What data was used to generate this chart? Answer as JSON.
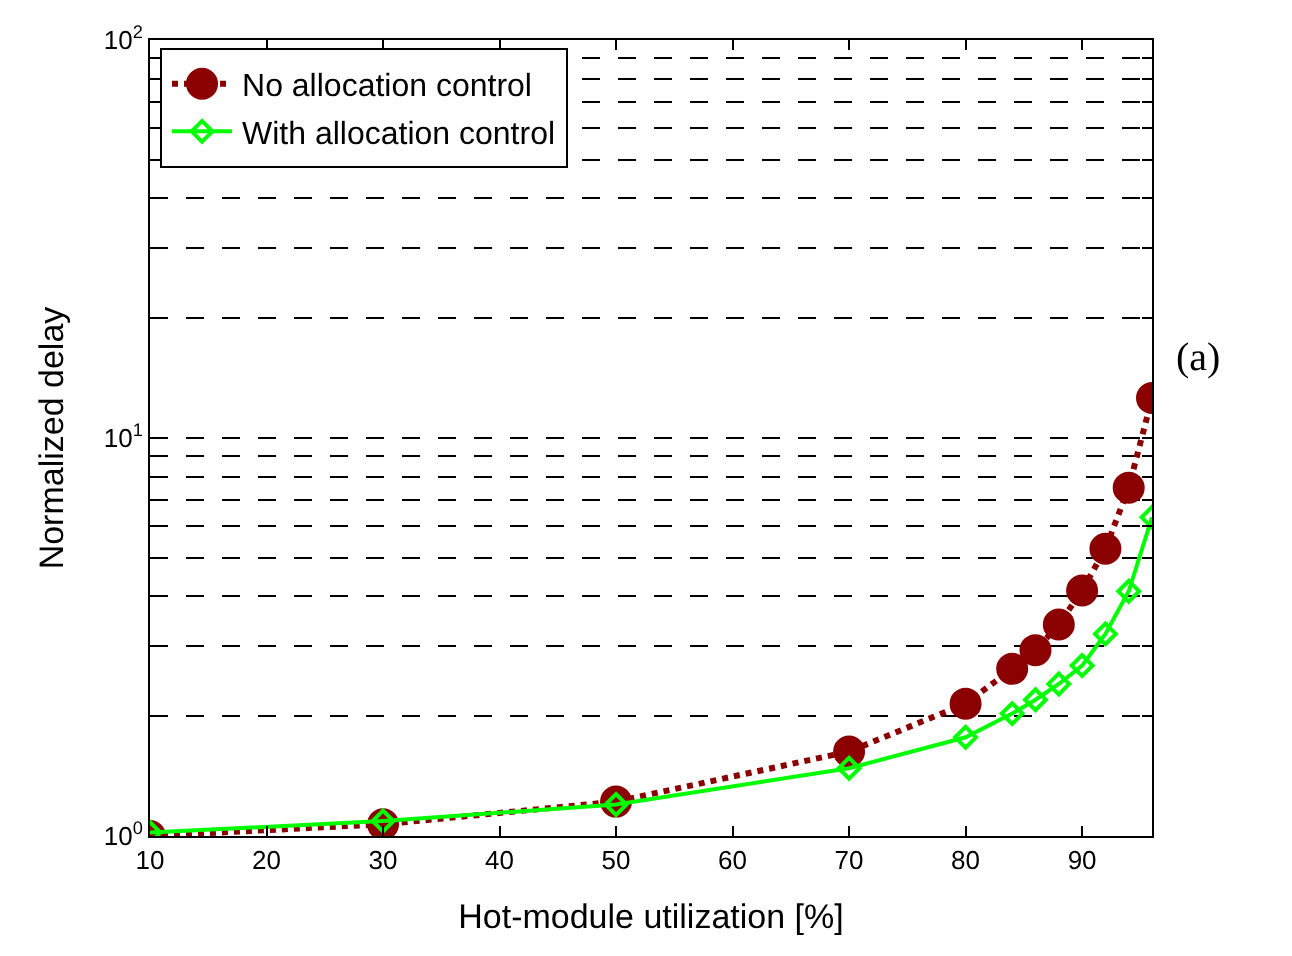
{
  "chart_data": {
    "type": "line",
    "xlabel": "Hot-module utilization [%]",
    "ylabel": "Normalized delay",
    "log": "y",
    "x": [
      10,
      30,
      50,
      70,
      80,
      84,
      86,
      88,
      90,
      92,
      94,
      96
    ],
    "series": [
      {
        "name": "No allocation control",
        "color": "#8b0000",
        "marker": "circle",
        "line_style": "dotted",
        "values": [
          1.0,
          1.07,
          1.22,
          1.63,
          2.15,
          2.63,
          2.93,
          3.4,
          4.14,
          5.27,
          7.5,
          12.6
        ]
      },
      {
        "name": "With allocation control",
        "color": "#00ff00",
        "marker": "diamond",
        "line_style": "solid",
        "values": [
          1.02,
          1.09,
          1.2,
          1.48,
          1.77,
          2.03,
          2.2,
          2.41,
          2.68,
          3.22,
          4.12,
          6.32
        ]
      }
    ],
    "xlim": [
      10,
      96
    ],
    "xticks": [
      10,
      20,
      30,
      40,
      50,
      60,
      70,
      80,
      90
    ],
    "ylim": [
      1,
      100
    ],
    "yticks": [
      {
        "value": 1,
        "label": "10$^{0}$"
      },
      {
        "value": 2,
        "label": null
      },
      {
        "value": 3,
        "label": null
      },
      {
        "value": 4,
        "label": null
      },
      {
        "value": 5,
        "label": null
      },
      {
        "value": 6,
        "label": null
      },
      {
        "value": 7,
        "label": null
      },
      {
        "value": 8,
        "label": null
      },
      {
        "value": 9,
        "label": null
      },
      {
        "value": 10,
        "label": "10$^{1}$"
      },
      {
        "value": 20,
        "label": null
      },
      {
        "value": 30,
        "label": null
      },
      {
        "value": 40,
        "label": null
      },
      {
        "value": 50,
        "label": null
      },
      {
        "value": 60,
        "label": null
      },
      {
        "value": 70,
        "label": null
      },
      {
        "value": 80,
        "label": null
      },
      {
        "value": 90,
        "label": null
      },
      {
        "value": 100,
        "label": "10$^{2}$"
      }
    ],
    "grid": "y",
    "legend": "top left",
    "annotations": [
      "(a)"
    ]
  }
}
